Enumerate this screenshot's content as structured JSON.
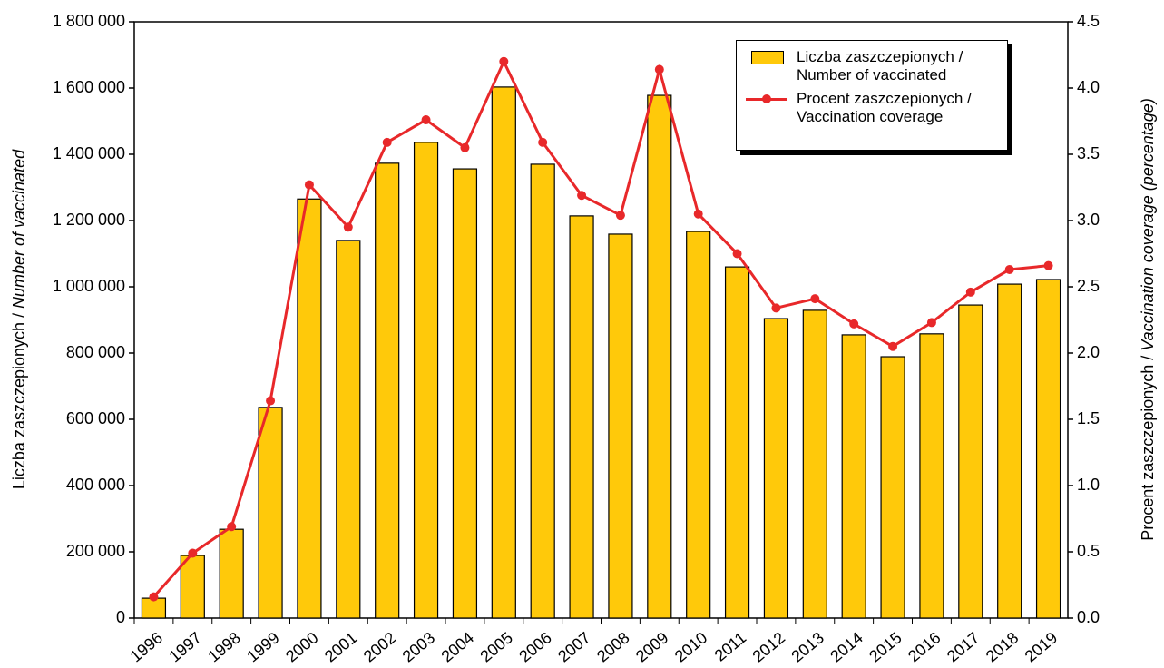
{
  "chart_data": {
    "type": "bar-line",
    "categories": [
      "1996",
      "1997",
      "1998",
      "1999",
      "2000",
      "2001",
      "2002",
      "2003",
      "2004",
      "2005",
      "2006",
      "2007",
      "2008",
      "2009",
      "2010",
      "2011",
      "2012",
      "2013",
      "2014",
      "2015",
      "2016",
      "2017",
      "2018",
      "2019"
    ],
    "series": [
      {
        "name": "Liczba zaszczepionych / Number of vaccinated",
        "type": "bar",
        "color": "#ffc90a",
        "values": [
          60000,
          189000,
          268000,
          636000,
          1265000,
          1140000,
          1373000,
          1436000,
          1356000,
          1603000,
          1370000,
          1214000,
          1159000,
          1578000,
          1167000,
          1060000,
          904000,
          929000,
          855000,
          789000,
          858000,
          945000,
          1008000,
          1022000
        ]
      },
      {
        "name": "Procent zaszczepionych / Vaccination coverage",
        "type": "line",
        "axis": "y2",
        "color": "#e8282a",
        "values": [
          0.16,
          0.49,
          0.69,
          1.64,
          3.27,
          2.95,
          3.59,
          3.76,
          3.55,
          4.2,
          3.59,
          3.19,
          3.04,
          4.14,
          3.05,
          2.75,
          2.34,
          2.41,
          2.22,
          2.05,
          2.23,
          2.46,
          2.63,
          2.66
        ]
      }
    ],
    "ylabel": [
      "Liczba zaszczepionych / ",
      "Number of vaccinated"
    ],
    "y2label": [
      "Procent zaszczepionych / ",
      "Vaccination coverage (percentage)"
    ],
    "ylim": [
      0,
      1800000
    ],
    "yticks": [
      0,
      {
        "value": 200000,
        "label": "200 000"
      },
      {
        "value": 400000,
        "label": "400 000"
      },
      {
        "value": 600000,
        "label": "600 000"
      },
      {
        "value": 800000,
        "label": "800 000"
      },
      {
        "value": 1000000,
        "label": "1 000 000"
      },
      {
        "value": 1200000,
        "label": "1 200 000"
      },
      {
        "value": 1400000,
        "label": "1 400 000"
      },
      {
        "value": 1600000,
        "label": "1 600 000"
      },
      {
        "value": 1800000,
        "label": "1 800 000"
      }
    ],
    "y2lim": [
      0,
      4.5
    ],
    "y2ticks": [
      {
        "value": 0,
        "label": "0.0"
      },
      0.5,
      {
        "value": 1,
        "label": "1.0"
      },
      1.5,
      {
        "value": 2,
        "label": "2.0"
      },
      2.5,
      {
        "value": 3,
        "label": "3.0"
      },
      3.5,
      {
        "value": 4,
        "label": "4.0"
      },
      4.5
    ],
    "legend": "top-right"
  }
}
